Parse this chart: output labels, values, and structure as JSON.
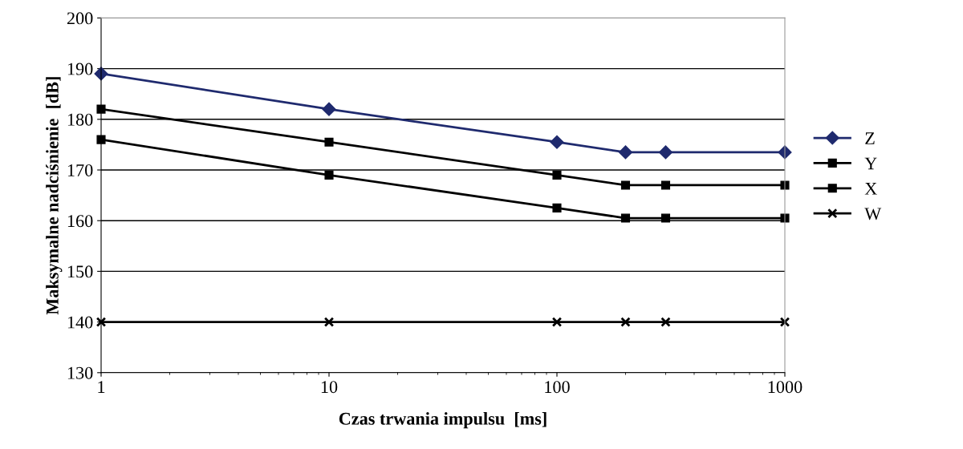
{
  "chart_data": {
    "type": "line",
    "xlabel": "Czas trwania impulsu  [ms]",
    "ylabel": "Maksymalne nadciśnienie  [dB]",
    "x": [
      1,
      10,
      100,
      200,
      300,
      1000
    ],
    "series": [
      {
        "name": "Z",
        "color": "#1f2a6e",
        "marker": "diamond",
        "values": [
          189,
          182,
          175.5,
          173.5,
          173.5,
          173.5
        ]
      },
      {
        "name": "Y",
        "color": "#000000",
        "marker": "square",
        "values": [
          182,
          175.5,
          169,
          167,
          167,
          167
        ]
      },
      {
        "name": "X",
        "color": "#000000",
        "marker": "square",
        "values": [
          176,
          169,
          162.5,
          160.5,
          160.5,
          160.5
        ]
      },
      {
        "name": "W",
        "color": "#000000",
        "marker": "cross",
        "values": [
          140,
          140,
          140,
          140,
          140,
          140
        ]
      }
    ],
    "log": "x",
    "xlim": [
      1,
      1000
    ],
    "xticks": [
      1,
      10,
      100,
      1000
    ],
    "ylim": [
      130,
      200
    ],
    "yticks": [
      130,
      140,
      150,
      160,
      170,
      180,
      190,
      200
    ],
    "grid": "y",
    "legend": "right",
    "line_style": "solid"
  }
}
